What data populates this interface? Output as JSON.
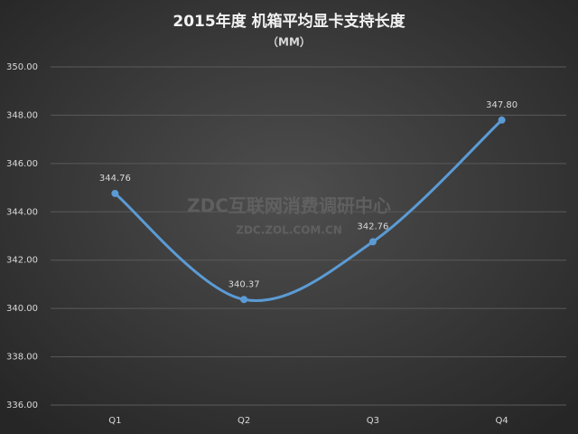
{
  "chart_data": {
    "type": "line",
    "smooth": true,
    "title": "2015年度 机箱平均显卡支持长度",
    "subtitle": "（MM）",
    "watermark": "ZDC互联网消费调研中心",
    "watermark_url": "ZDC.ZOL.COM.CN",
    "categories": [
      "Q1",
      "Q2",
      "Q3",
      "Q4"
    ],
    "values": [
      344.76,
      340.37,
      342.76,
      347.8
    ],
    "value_labels": [
      "344.76",
      "340.37",
      "342.76",
      "347.80"
    ],
    "color": "#5b9bd5",
    "ylim": [
      336,
      350
    ],
    "yticks": [
      {
        "value": 336,
        "label": "336.00"
      },
      {
        "value": 338,
        "label": "338.00"
      },
      {
        "value": 340,
        "label": "340.00"
      },
      {
        "value": 342,
        "label": "342.00"
      },
      {
        "value": 344,
        "label": "344.00"
      },
      {
        "value": 346,
        "label": "346.00"
      },
      {
        "value": 348,
        "label": "348.00"
      },
      {
        "value": 350,
        "label": "350.00"
      }
    ],
    "grid": true
  }
}
